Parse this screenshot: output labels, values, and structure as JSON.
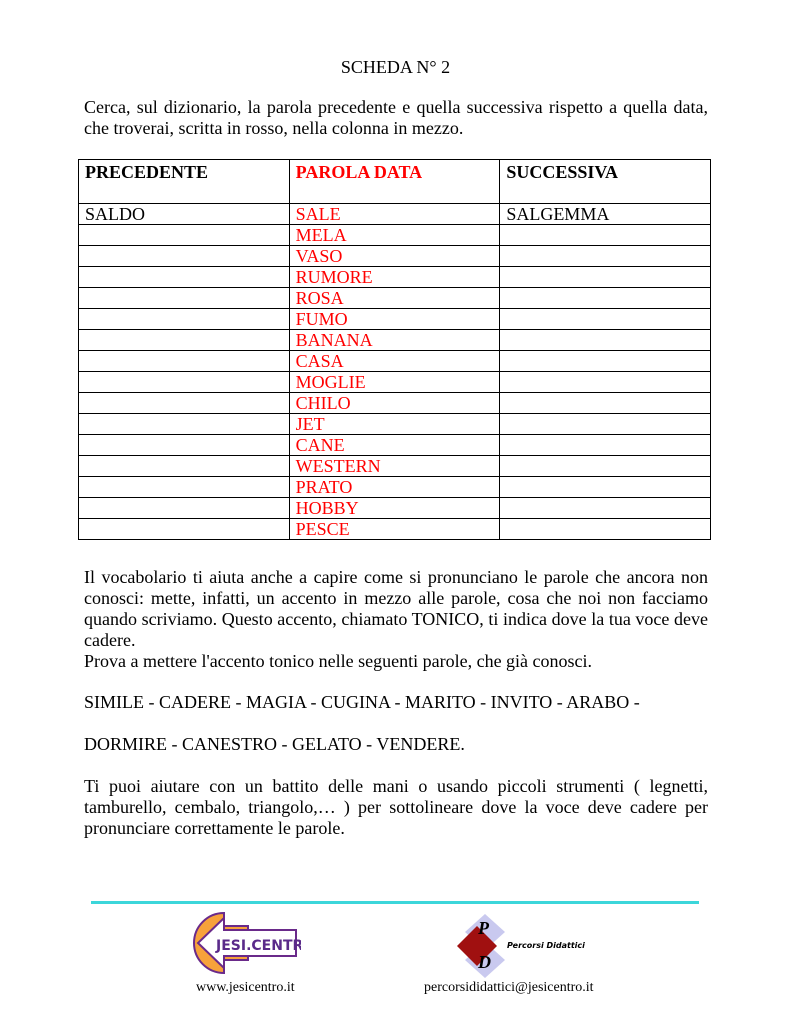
{
  "title": "SCHEDA N° 2",
  "intro": "Cerca, sul dizionario, la parola precedente e quella successiva rispetto a quella data, che troverai, scritta in rosso, nella colonna in mezzo.",
  "table": {
    "headers": [
      "PRECEDENTE",
      "PAROLA DATA",
      "SUCCESSIVA"
    ],
    "rows": [
      [
        "SALDO",
        "SALE",
        "SALGEMMA"
      ],
      [
        "",
        "MELA",
        ""
      ],
      [
        "",
        "VASO",
        ""
      ],
      [
        "",
        "RUMORE",
        ""
      ],
      [
        "",
        "ROSA",
        ""
      ],
      [
        "",
        "FUMO",
        ""
      ],
      [
        "",
        "BANANA",
        ""
      ],
      [
        "",
        "CASA",
        ""
      ],
      [
        "",
        "MOGLIE",
        ""
      ],
      [
        "",
        "CHILO",
        ""
      ],
      [
        "",
        "JET",
        ""
      ],
      [
        "",
        "CANE",
        ""
      ],
      [
        "",
        "WESTERN",
        ""
      ],
      [
        "",
        "PRATO",
        ""
      ],
      [
        "",
        "HOBBY",
        ""
      ],
      [
        "",
        "PESCE",
        ""
      ]
    ]
  },
  "paragraph2": "Il vocabolario ti aiuta anche a capire come si pronunciano le parole che ancora non conosci: mette, infatti, un accento in mezzo alle parole, cosa che noi non facciamo quando scriviamo. Questo accento, chiamato TONICO, ti indica dove la tua voce deve cadere.",
  "paragraph3": "Prova a mettere l'accento tonico nelle seguenti parole, che già conosci.",
  "words1": "SIMILE - CADERE - MAGIA - CUGINA - MARITO - INVITO - ARABO -",
  "words2": "DORMIRE - CANESTRO - GELATO - VENDERE.",
  "paragraph4": "Ti puoi aiutare con un battito delle mani o usando piccoli strumenti ( legnetti, tamburello, cembalo, triangolo,… ) per sottolineare dove la voce deve cadere per pronunciare correttamente le parole.",
  "footer": {
    "logo1_text": "JESI.CENTRO",
    "logo2_text": "Percorsi Didattici",
    "logo2_letters": [
      "P",
      "D"
    ],
    "website": "www.jesicentro.it",
    "email": "percorsididattici@jesicentro.it"
  },
  "colors": {
    "highlight": "#ff0000",
    "rule": "#3cd6da",
    "logo_orange": "#f7a23b",
    "logo_purple": "#6a2a8a"
  }
}
